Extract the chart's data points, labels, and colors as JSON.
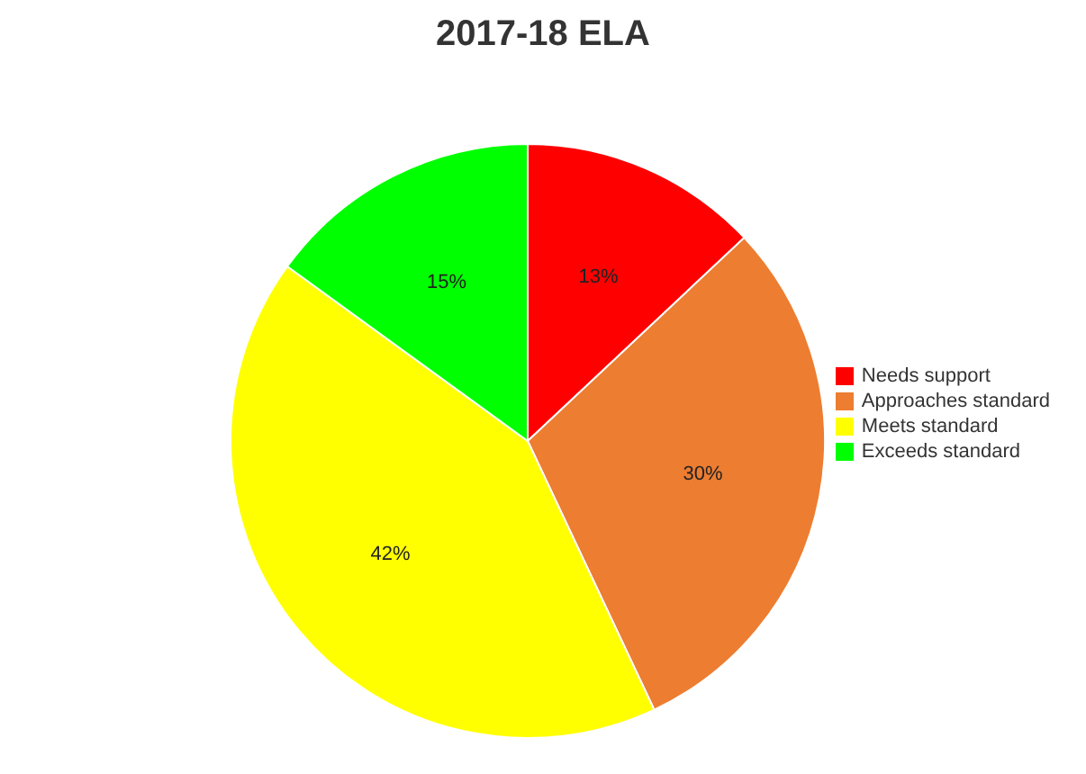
{
  "chart_data": {
    "type": "pie",
    "title": "2017-18 ELA",
    "categories": [
      "Needs support",
      "Approaches standard",
      "Meets standard",
      "Exceeds standard"
    ],
    "values": [
      13,
      30,
      42,
      15
    ],
    "colors": [
      "#ff0000",
      "#ed7d31",
      "#ffff00",
      "#00ff00"
    ],
    "value_labels": [
      "13%",
      "30%",
      "42%",
      "15%"
    ],
    "legend": "right"
  }
}
